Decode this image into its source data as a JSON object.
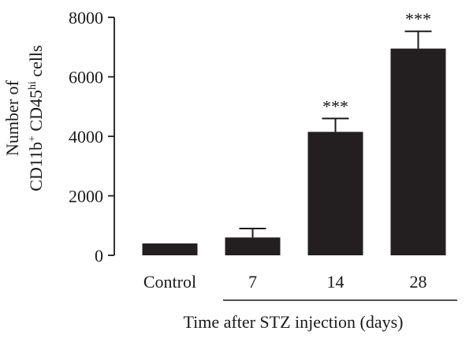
{
  "chart_data": {
    "type": "bar",
    "categories": [
      "Control",
      "7",
      "14",
      "28"
    ],
    "values": [
      400,
      600,
      4150,
      6950
    ],
    "errors": [
      0,
      300,
      450,
      580
    ],
    "significance": [
      "",
      "",
      "***",
      "***"
    ],
    "ylim": [
      0,
      8000
    ],
    "yticks": [
      0,
      2000,
      4000,
      6000,
      8000
    ],
    "ylabel_line1": "Number of",
    "ylabel_line2_parts": [
      "CD11b",
      "+",
      " CD45",
      "hi",
      " cells"
    ],
    "xlabel": "Time after STZ injection (days)",
    "bar_color": "#231f20",
    "grid": false,
    "legend": "none"
  }
}
